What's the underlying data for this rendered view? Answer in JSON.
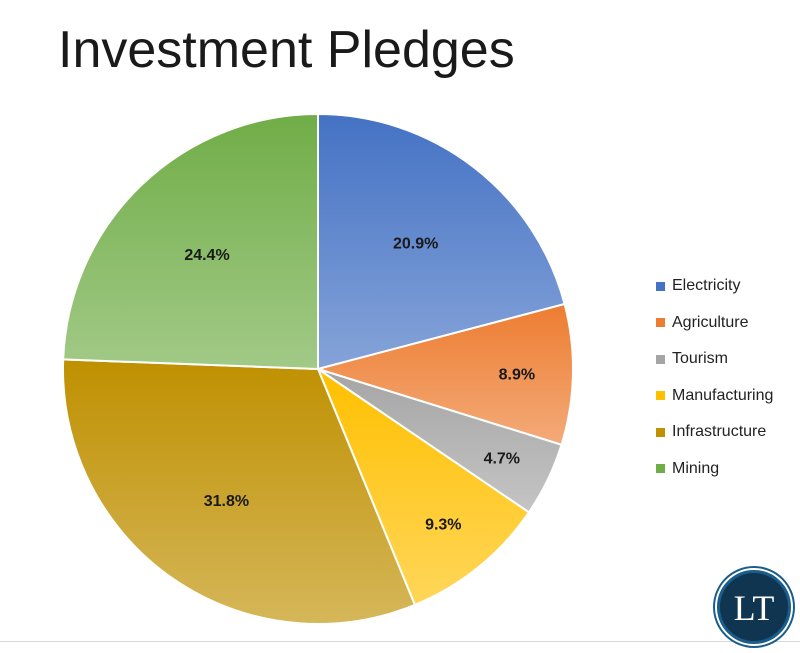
{
  "chart_data": {
    "type": "pie",
    "title": "Investment Pledges",
    "legend_position": "right",
    "start_angle_deg": 0,
    "direction": "clockwise",
    "slices": [
      {
        "name": "Electricity",
        "value": 20.9,
        "label": "20.9%",
        "color": "#4472c4"
      },
      {
        "name": "Agriculture",
        "value": 8.9,
        "label": "8.9%",
        "color": "#ed7d31"
      },
      {
        "name": "Tourism",
        "value": 4.7,
        "label": "4.7%",
        "color": "#a5a5a5"
      },
      {
        "name": "Manufacturing",
        "value": 9.3,
        "label": "9.3%",
        "color": "#ffc000"
      },
      {
        "name": "Infrastructure",
        "value": 31.8,
        "label": "31.8%",
        "color": "#bf9000"
      },
      {
        "name": "Mining",
        "value": 24.4,
        "label": "24.4%",
        "color": "#70ad47"
      }
    ]
  },
  "logo": {
    "text": "LT",
    "colors": {
      "ring": "#1a5c8a",
      "inner": "#0f3550",
      "text": "#ffffff"
    }
  }
}
